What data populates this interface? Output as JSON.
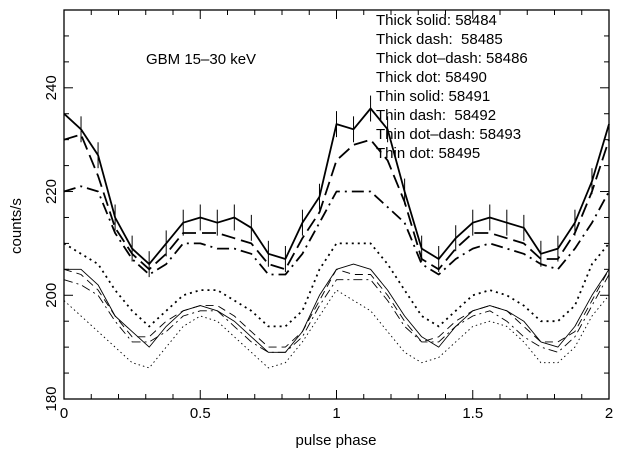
{
  "chart_data": {
    "type": "line",
    "xlabel": "pulse phase",
    "ylabel": "counts/s",
    "xlim": [
      0,
      2
    ],
    "ylim": [
      180,
      255
    ],
    "xticks": [
      0,
      0.5,
      1,
      1.5,
      2
    ],
    "xtick_labels": [
      "0",
      "0.5",
      "1",
      "1.5",
      "2"
    ],
    "yticks": [
      180,
      200,
      220,
      240
    ],
    "ytick_labels": [
      "180",
      "200",
      "220",
      "240"
    ],
    "annotation": "GBM 15–30 keV",
    "legend": [
      "Thick solid: 58484",
      "Thick dash:  58485",
      "Thick dot–dash: 58486",
      "Thick dot: 58490",
      "Thin solid: 58491",
      "Thin dash:  58492",
      "Thin dot–dash: 58493",
      "Thin dot: 58495"
    ],
    "x": [
      0,
      0.0625,
      0.125,
      0.1875,
      0.25,
      0.3125,
      0.375,
      0.4375,
      0.5,
      0.5625,
      0.625,
      0.6875,
      0.75,
      0.8125,
      0.875,
      0.9375,
      1.0,
      1.0625,
      1.125,
      1.1875,
      1.25,
      1.3125,
      1.375,
      1.4375,
      1.5,
      1.5625,
      1.625,
      1.6875,
      1.75,
      1.8125,
      1.875,
      1.9375,
      2.0
    ],
    "series": [
      {
        "style": "thick-solid",
        "errorbar": 2.5,
        "values": [
          235,
          232,
          227,
          215,
          209,
          206,
          210,
          214,
          215,
          214,
          215,
          213,
          208,
          207,
          214,
          219,
          233,
          232,
          236,
          232,
          220,
          209,
          207,
          211,
          214,
          215,
          214,
          213,
          208,
          209,
          214,
          222,
          233
        ]
      },
      {
        "style": "thick-dash",
        "values": [
          230,
          231,
          223,
          213,
          208,
          205,
          208,
          212,
          212,
          212,
          211,
          210,
          206,
          205,
          211,
          216,
          226,
          229,
          230,
          226,
          218,
          207,
          205,
          209,
          212,
          212,
          211,
          210,
          207,
          207,
          212,
          220,
          230
        ]
      },
      {
        "style": "thick-dot-dash",
        "values": [
          220,
          221,
          220,
          212,
          207,
          204,
          206,
          210,
          210,
          209,
          209,
          208,
          204,
          204,
          208,
          214,
          220,
          220,
          220,
          217,
          214,
          206,
          204,
          207,
          209,
          210,
          209,
          208,
          206,
          205,
          209,
          214,
          220
        ]
      },
      {
        "style": "thick-dot",
        "values": [
          210,
          208,
          206,
          201,
          197,
          194,
          197,
          200,
          201,
          201,
          199,
          197,
          194,
          194,
          197,
          205,
          210,
          210,
          210,
          206,
          201,
          196,
          194,
          197,
          200,
          201,
          200,
          198,
          195,
          195,
          198,
          206,
          210
        ]
      },
      {
        "style": "thin-solid",
        "values": [
          205,
          205,
          202,
          196,
          193,
          190,
          194,
          197,
          198,
          197,
          195,
          192,
          189,
          189,
          193,
          200,
          205,
          206,
          205,
          201,
          196,
          192,
          190,
          194,
          197,
          198,
          197,
          195,
          191,
          190,
          194,
          200,
          205
        ]
      },
      {
        "style": "thin-dash",
        "values": [
          205,
          204,
          201,
          196,
          192,
          192,
          195,
          197,
          198,
          198,
          196,
          193,
          190,
          190,
          193,
          199,
          205,
          204,
          204,
          200,
          195,
          191,
          192,
          195,
          197,
          198,
          197,
          194,
          191,
          191,
          193,
          199,
          205
        ]
      },
      {
        "style": "thin-dot-dash",
        "values": [
          203,
          202,
          200,
          195,
          191,
          191,
          193,
          196,
          197,
          197,
          194,
          191,
          189,
          189,
          192,
          198,
          203,
          203,
          203,
          199,
          194,
          191,
          191,
          194,
          196,
          197,
          195,
          192,
          190,
          189,
          192,
          198,
          204
        ]
      },
      {
        "style": "thin-dot",
        "values": [
          199,
          196,
          193,
          190,
          187,
          186,
          190,
          194,
          196,
          195,
          192,
          189,
          186,
          187,
          191,
          196,
          201,
          199,
          197,
          193,
          189,
          187,
          188,
          191,
          194,
          195,
          194,
          191,
          187,
          187,
          190,
          196,
          200
        ]
      }
    ]
  }
}
